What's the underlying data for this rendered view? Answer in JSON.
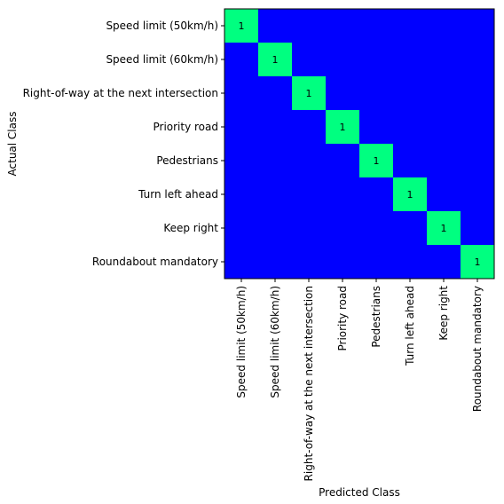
{
  "chart_data": {
    "type": "heatmap",
    "xlabel": "Predicted Class",
    "ylabel": "Actual Class",
    "row_labels": [
      "Speed limit (50km/h)",
      "Speed limit (60km/h)",
      "Right-of-way at the next intersection",
      "Priority road",
      "Pedestrians",
      "Turn left ahead",
      "Keep right",
      "Roundabout mandatory"
    ],
    "col_labels": [
      "Speed limit (50km/h)",
      "Speed limit (60km/h)",
      "Right-of-way at the next intersection",
      "Priority road",
      "Pedestrians",
      "Turn left ahead",
      "Keep right",
      "Roundabout mandatory"
    ],
    "values": [
      [
        1,
        0,
        0,
        0,
        0,
        0,
        0,
        0
      ],
      [
        0,
        1,
        0,
        0,
        0,
        0,
        0,
        0
      ],
      [
        0,
        0,
        1,
        0,
        0,
        0,
        0,
        0
      ],
      [
        0,
        0,
        0,
        1,
        0,
        0,
        0,
        0
      ],
      [
        0,
        0,
        0,
        0,
        1,
        0,
        0,
        0
      ],
      [
        0,
        0,
        0,
        0,
        0,
        1,
        0,
        0
      ],
      [
        0,
        0,
        0,
        0,
        0,
        0,
        1,
        0
      ],
      [
        0,
        0,
        0,
        0,
        0,
        0,
        0,
        1
      ]
    ],
    "colors": {
      "zero": "#0000ff",
      "one": "#00ff80"
    },
    "annotate": "nonzero",
    "grid": false
  }
}
